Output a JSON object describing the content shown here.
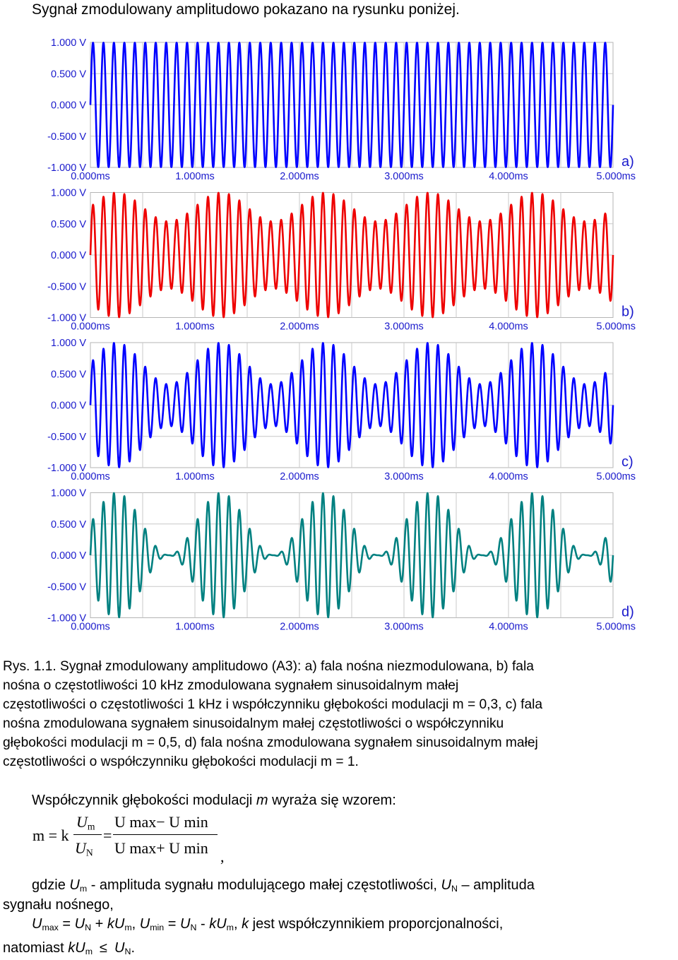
{
  "intro": "Sygnał zmodulowany amplitudowo pokazano na rysunku poniżej.",
  "chart_data": [
    {
      "type": "line",
      "panel_label": "a)",
      "color": "#0000ff",
      "carrier_khz": 10,
      "modulation_khz": 1,
      "m": 0,
      "x_ticks": [
        "0.000ms",
        "1.000ms",
        "2.000ms",
        "3.000ms",
        "4.000ms",
        "5.000ms"
      ],
      "y_ticks": [
        "1.000 V",
        "0.500 V",
        "0.000 V",
        "-0.500 V",
        "-1.000 V"
      ],
      "xlim": [
        0,
        5
      ],
      "ylim": [
        -1,
        1
      ],
      "grid": true
    },
    {
      "type": "line",
      "panel_label": "b)",
      "color": "#ee0000",
      "carrier_khz": 10,
      "modulation_khz": 1,
      "m": 0.3,
      "x_ticks": [
        "0.000ms",
        "1.000ms",
        "2.000ms",
        "3.000ms",
        "4.000ms",
        "5.000ms"
      ],
      "y_ticks": [
        "1.000 V",
        "0.500 V",
        "0.000 V",
        "-0.500 V",
        "-1.000 V"
      ],
      "xlim": [
        0,
        5
      ],
      "ylim": [
        -1,
        1
      ],
      "grid": true
    },
    {
      "type": "line",
      "panel_label": "c)",
      "color": "#0000ff",
      "carrier_khz": 10,
      "modulation_khz": 1,
      "m": 0.5,
      "x_ticks": [
        "0.000ms",
        "1.000ms",
        "2.000ms",
        "3.000ms",
        "4.000ms",
        "5.000ms"
      ],
      "y_ticks": [
        "1.000 V",
        "0.500 V",
        "0.000 V",
        "-0.500 V",
        "-1.000 V"
      ],
      "xlim": [
        0,
        5
      ],
      "ylim": [
        -1,
        1
      ],
      "grid": true
    },
    {
      "type": "line",
      "panel_label": "d)",
      "color": "#008080",
      "carrier_khz": 10,
      "modulation_khz": 1,
      "m": 1,
      "x_ticks": [
        "0.000ms",
        "1.000ms",
        "2.000ms",
        "3.000ms",
        "4.000ms",
        "5.000ms"
      ],
      "y_ticks": [
        "1.000 V",
        "0.500 V",
        "0.000 V",
        "-0.500 V",
        "-1.000 V"
      ],
      "xlim": [
        0,
        5
      ],
      "ylim": [
        -1,
        1
      ],
      "grid": true
    }
  ],
  "caption": [
    "Rys. 1.1. Sygnał zmodulowany amplitudowo (A3): a) fala nośna niezmodulowana, b) fala",
    "nośna o częstotliwości 10 kHz zmodulowana sygnałem sinusoidalnym małej",
    "częstotliwości o częstotliwości 1 kHz i współczynniku głębokości modulacji m = 0,3, c) fala",
    "nośna zmodulowana sygnałem sinusoidalnym małej częstotliwości o współczynniku",
    "głębokości modulacji m = 0,5, d) fala nośna zmodulowana sygnałem sinusoidalnym małej",
    "częstotliwości o współczynniku głębokości modulacji m = 1."
  ],
  "formula_intro": {
    "before": "Współczynnik głębokości modulacji ",
    "var": "m",
    "after": " wyraża się wzorem:"
  },
  "formula": {
    "lhs": "m = k",
    "num1": "U",
    "num1_sub": "m",
    "den1": "U",
    "den1_sub": "N",
    "eq": "=",
    "num2": "U max− U min",
    "den2": "U max+ U min",
    "comma": ","
  },
  "where": {
    "p1": "gdzie ",
    "U": "U",
    "m": "m",
    "p2": " - amplituda sygnału modulującego małej częstotliwości, ",
    "N": "N",
    "p3": " – amplituda",
    "line2": "sygnału nośnego,"
  },
  "relations": {
    "U": "U",
    "max": "max",
    "eq": " = ",
    "N": "N",
    "plus": " + ",
    "k": "k",
    "m": "m",
    "comma": ", ",
    "min": "min",
    "minus": " - ",
    "tail": " jest współczynnikiem proporcjonalności,"
  },
  "final": {
    "text": "natomiast ",
    "k": "k",
    "U": "U",
    "m": "m",
    "leq": "≤",
    "N": "N",
    "dot": "."
  }
}
